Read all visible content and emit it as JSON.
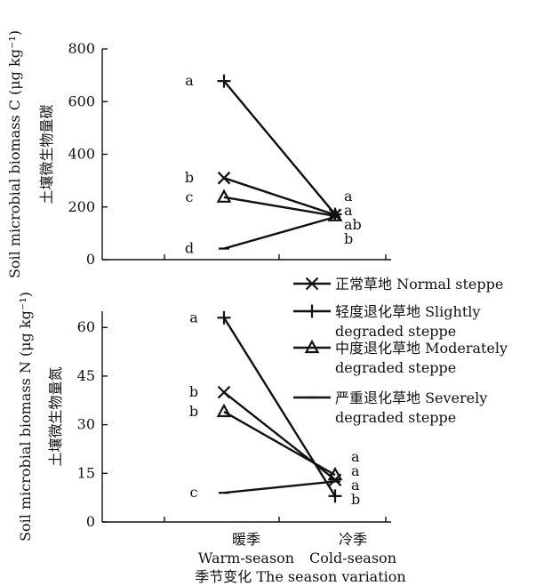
{
  "legend": [
    {
      "line1": "正常草地 Normal steppe",
      "line2": ""
    },
    {
      "line1": "轻度退化草地 Slightly",
      "line2": "degraded steppe"
    },
    {
      "line1": "中度退化草地 Moderately",
      "line2": "degraded steppe"
    },
    {
      "line1": "严重退化草地 Severely",
      "line2": "degraded steppe"
    }
  ],
  "x_title": "季节变化 The season variation",
  "chart_data": [
    {
      "type": "line",
      "ylabel_en": "Soil microbial biomass C (μg kg⁻¹)",
      "ylabel_zh": "土壤微生物量碳",
      "ylim": [
        0,
        800
      ],
      "yticks": [
        0,
        200,
        400,
        600,
        800
      ],
      "categories": [
        {
          "zh": "暖季",
          "en": "Warm-season"
        },
        {
          "zh": "冷季",
          "en": "Cold-season"
        }
      ],
      "series": [
        {
          "name": "正常草地 Normal steppe",
          "marker": "x",
          "values": [
            310,
            170
          ],
          "letters": [
            "b",
            "a"
          ]
        },
        {
          "name": "轻度退化草地 Slightly degraded steppe",
          "marker": "plus",
          "values": [
            678,
            172
          ],
          "letters": [
            "a",
            "a"
          ]
        },
        {
          "name": "中度退化草地 Moderately degraded steppe",
          "marker": "triangle",
          "values": [
            237,
            166
          ],
          "letters": [
            "c",
            "ab"
          ]
        },
        {
          "name": "严重退化草地 Severely degraded steppe",
          "marker": "dash",
          "values": [
            42,
            162
          ],
          "letters": [
            "d",
            "b"
          ]
        }
      ]
    },
    {
      "type": "line",
      "ylabel_en": "Soil microbial biomass N (μg kg⁻¹)",
      "ylabel_zh": "土壤微生物量氮",
      "ylim": [
        0,
        65
      ],
      "yticks": [
        0,
        15,
        30,
        45,
        60
      ],
      "categories": [
        {
          "zh": "暖季",
          "en": "Warm-season"
        },
        {
          "zh": "冷季",
          "en": "Cold-season"
        }
      ],
      "series": [
        {
          "name": "正常草地 Normal steppe",
          "marker": "x",
          "values": [
            40,
            13
          ],
          "letters": [
            "b",
            "a"
          ]
        },
        {
          "name": "轻度退化草地 Slightly degraded steppe",
          "marker": "plus",
          "values": [
            63,
            8
          ],
          "letters": [
            "a",
            "b"
          ]
        },
        {
          "name": "中度退化草地 Moderately degraded steppe",
          "marker": "triangle",
          "values": [
            34,
            14.5
          ],
          "letters": [
            "b",
            "a"
          ]
        },
        {
          "name": "严重退化草地 Severely degraded steppe",
          "marker": "dash",
          "values": [
            9,
            12.5
          ],
          "letters": [
            "c",
            "a"
          ]
        }
      ]
    }
  ]
}
